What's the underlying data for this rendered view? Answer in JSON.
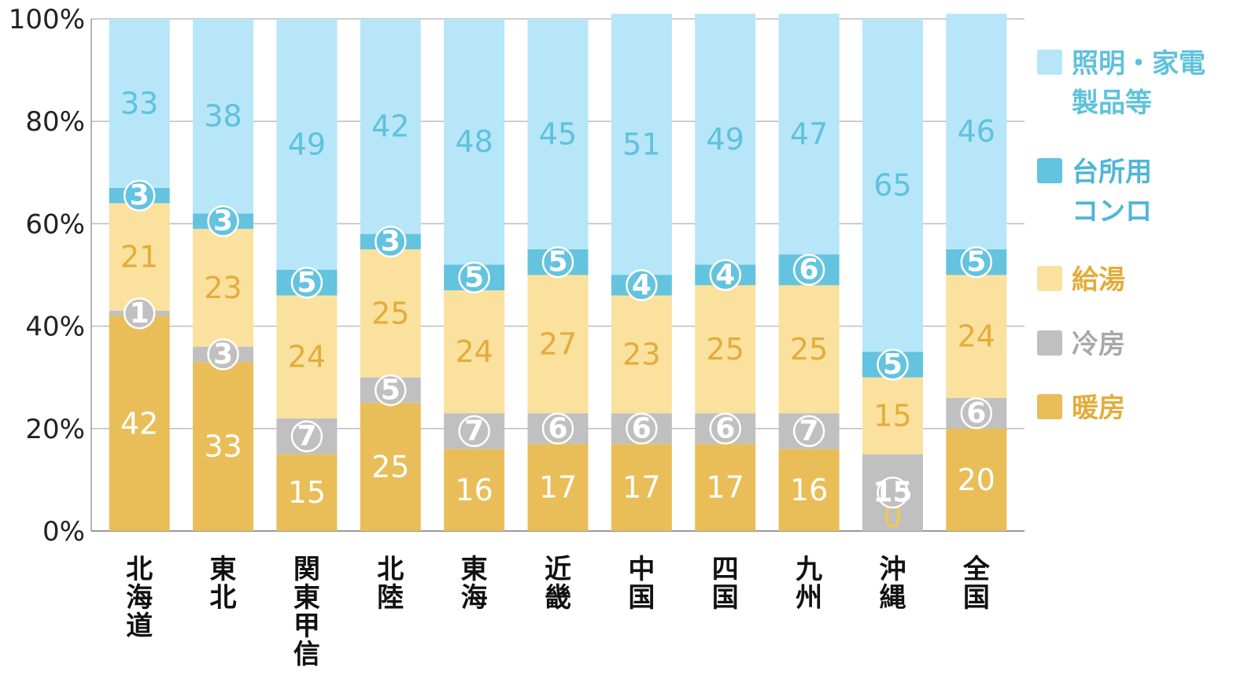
{
  "chart_data": {
    "type": "bar",
    "stacked": true,
    "categories": [
      "北海道",
      "東北",
      "関東甲信",
      "北陸",
      "東海",
      "近畿",
      "中国",
      "四国",
      "九州",
      "沖縄",
      "全国"
    ],
    "series": [
      {
        "name": "暖房",
        "color": "#e9be58",
        "label_color": "#ffffff",
        "values": [
          42,
          33,
          15,
          25,
          16,
          17,
          17,
          17,
          16,
          0,
          20
        ]
      },
      {
        "name": "冷房",
        "color": "#c0c0c0",
        "label_color": "#ffffff",
        "values": [
          1,
          3,
          7,
          5,
          7,
          6,
          6,
          6,
          7,
          15,
          6
        ]
      },
      {
        "name": "給湯",
        "color": "#fbe19e",
        "label_color": "#e3ac3a",
        "values": [
          21,
          23,
          24,
          25,
          24,
          27,
          23,
          25,
          25,
          15,
          24
        ]
      },
      {
        "name": "台所用コンロ",
        "color": "#64c3df",
        "label_color": "#ffffff",
        "values": [
          3,
          3,
          5,
          3,
          5,
          5,
          4,
          4,
          6,
          5,
          5
        ]
      },
      {
        "name": "照明・家電製品等",
        "color": "#b6e6f8",
        "label_color": "#5fc1dd",
        "values": [
          33,
          38,
          49,
          42,
          48,
          45,
          51,
          49,
          47,
          65,
          46
        ]
      }
    ],
    "ylim": [
      0,
      100
    ],
    "yticks": [
      "0%",
      "20%",
      "40%",
      "60%",
      "80%",
      "100%"
    ],
    "grid": true,
    "legend_position": "right",
    "legend": [
      {
        "lines": [
          "照明・家電",
          "製品等"
        ],
        "color": "#b6e6f8",
        "text_color": "#5fc1dd"
      },
      {
        "lines": [
          "台所用",
          "コンロ"
        ],
        "color": "#64c3df",
        "text_color": "#4fb6d6"
      },
      {
        "lines": [
          "給湯"
        ],
        "color": "#fbe19e",
        "text_color": "#e3ac3a"
      },
      {
        "lines": [
          "冷房"
        ],
        "color": "#c0c0c0",
        "text_color": "#a8a8a8"
      },
      {
        "lines": [
          "暖房"
        ],
        "color": "#e9be58",
        "text_color": "#e3ac3a"
      }
    ]
  }
}
